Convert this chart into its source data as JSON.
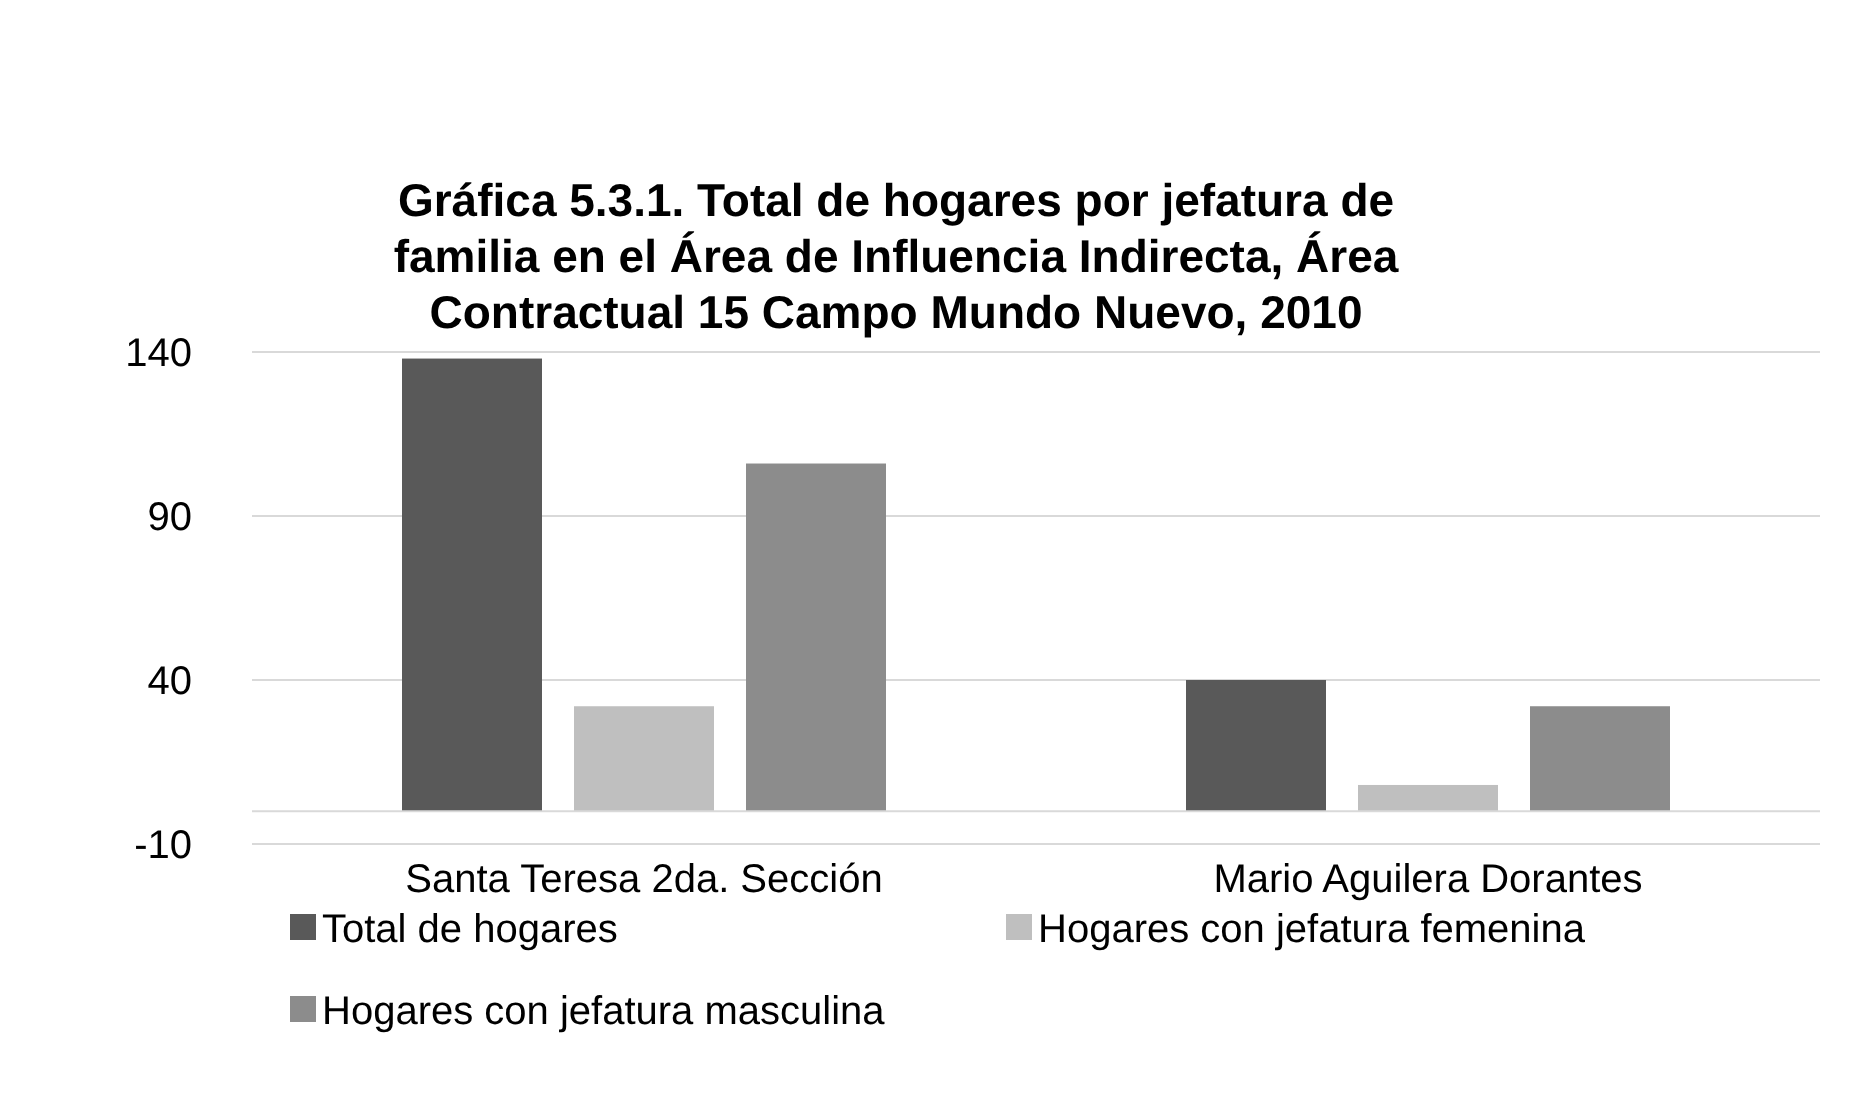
{
  "chart_data": {
    "type": "bar",
    "title": "Gráfica 5.3.1. Total de hogares por jefatura de familia en el Área de Influencia Indirecta, Área Contractual 15 Campo Mundo Nuevo, 2010",
    "categories": [
      "Santa Teresa 2da. Sección",
      "Mario Aguilera Dorantes"
    ],
    "series": [
      {
        "name": "Total de hogares",
        "color": "#595959",
        "values": [
          138,
          40
        ]
      },
      {
        "name": "Hogares con jefatura femenina",
        "color": "#bfbfbf",
        "values": [
          32,
          8
        ]
      },
      {
        "name": "Hogares con jefatura masculina",
        "color": "#8c8c8c",
        "values": [
          106,
          32
        ]
      }
    ],
    "ylim": [
      -10,
      140
    ],
    "yticks": [
      -10,
      40,
      90,
      140
    ],
    "grid": "y",
    "legend": "bottom"
  }
}
